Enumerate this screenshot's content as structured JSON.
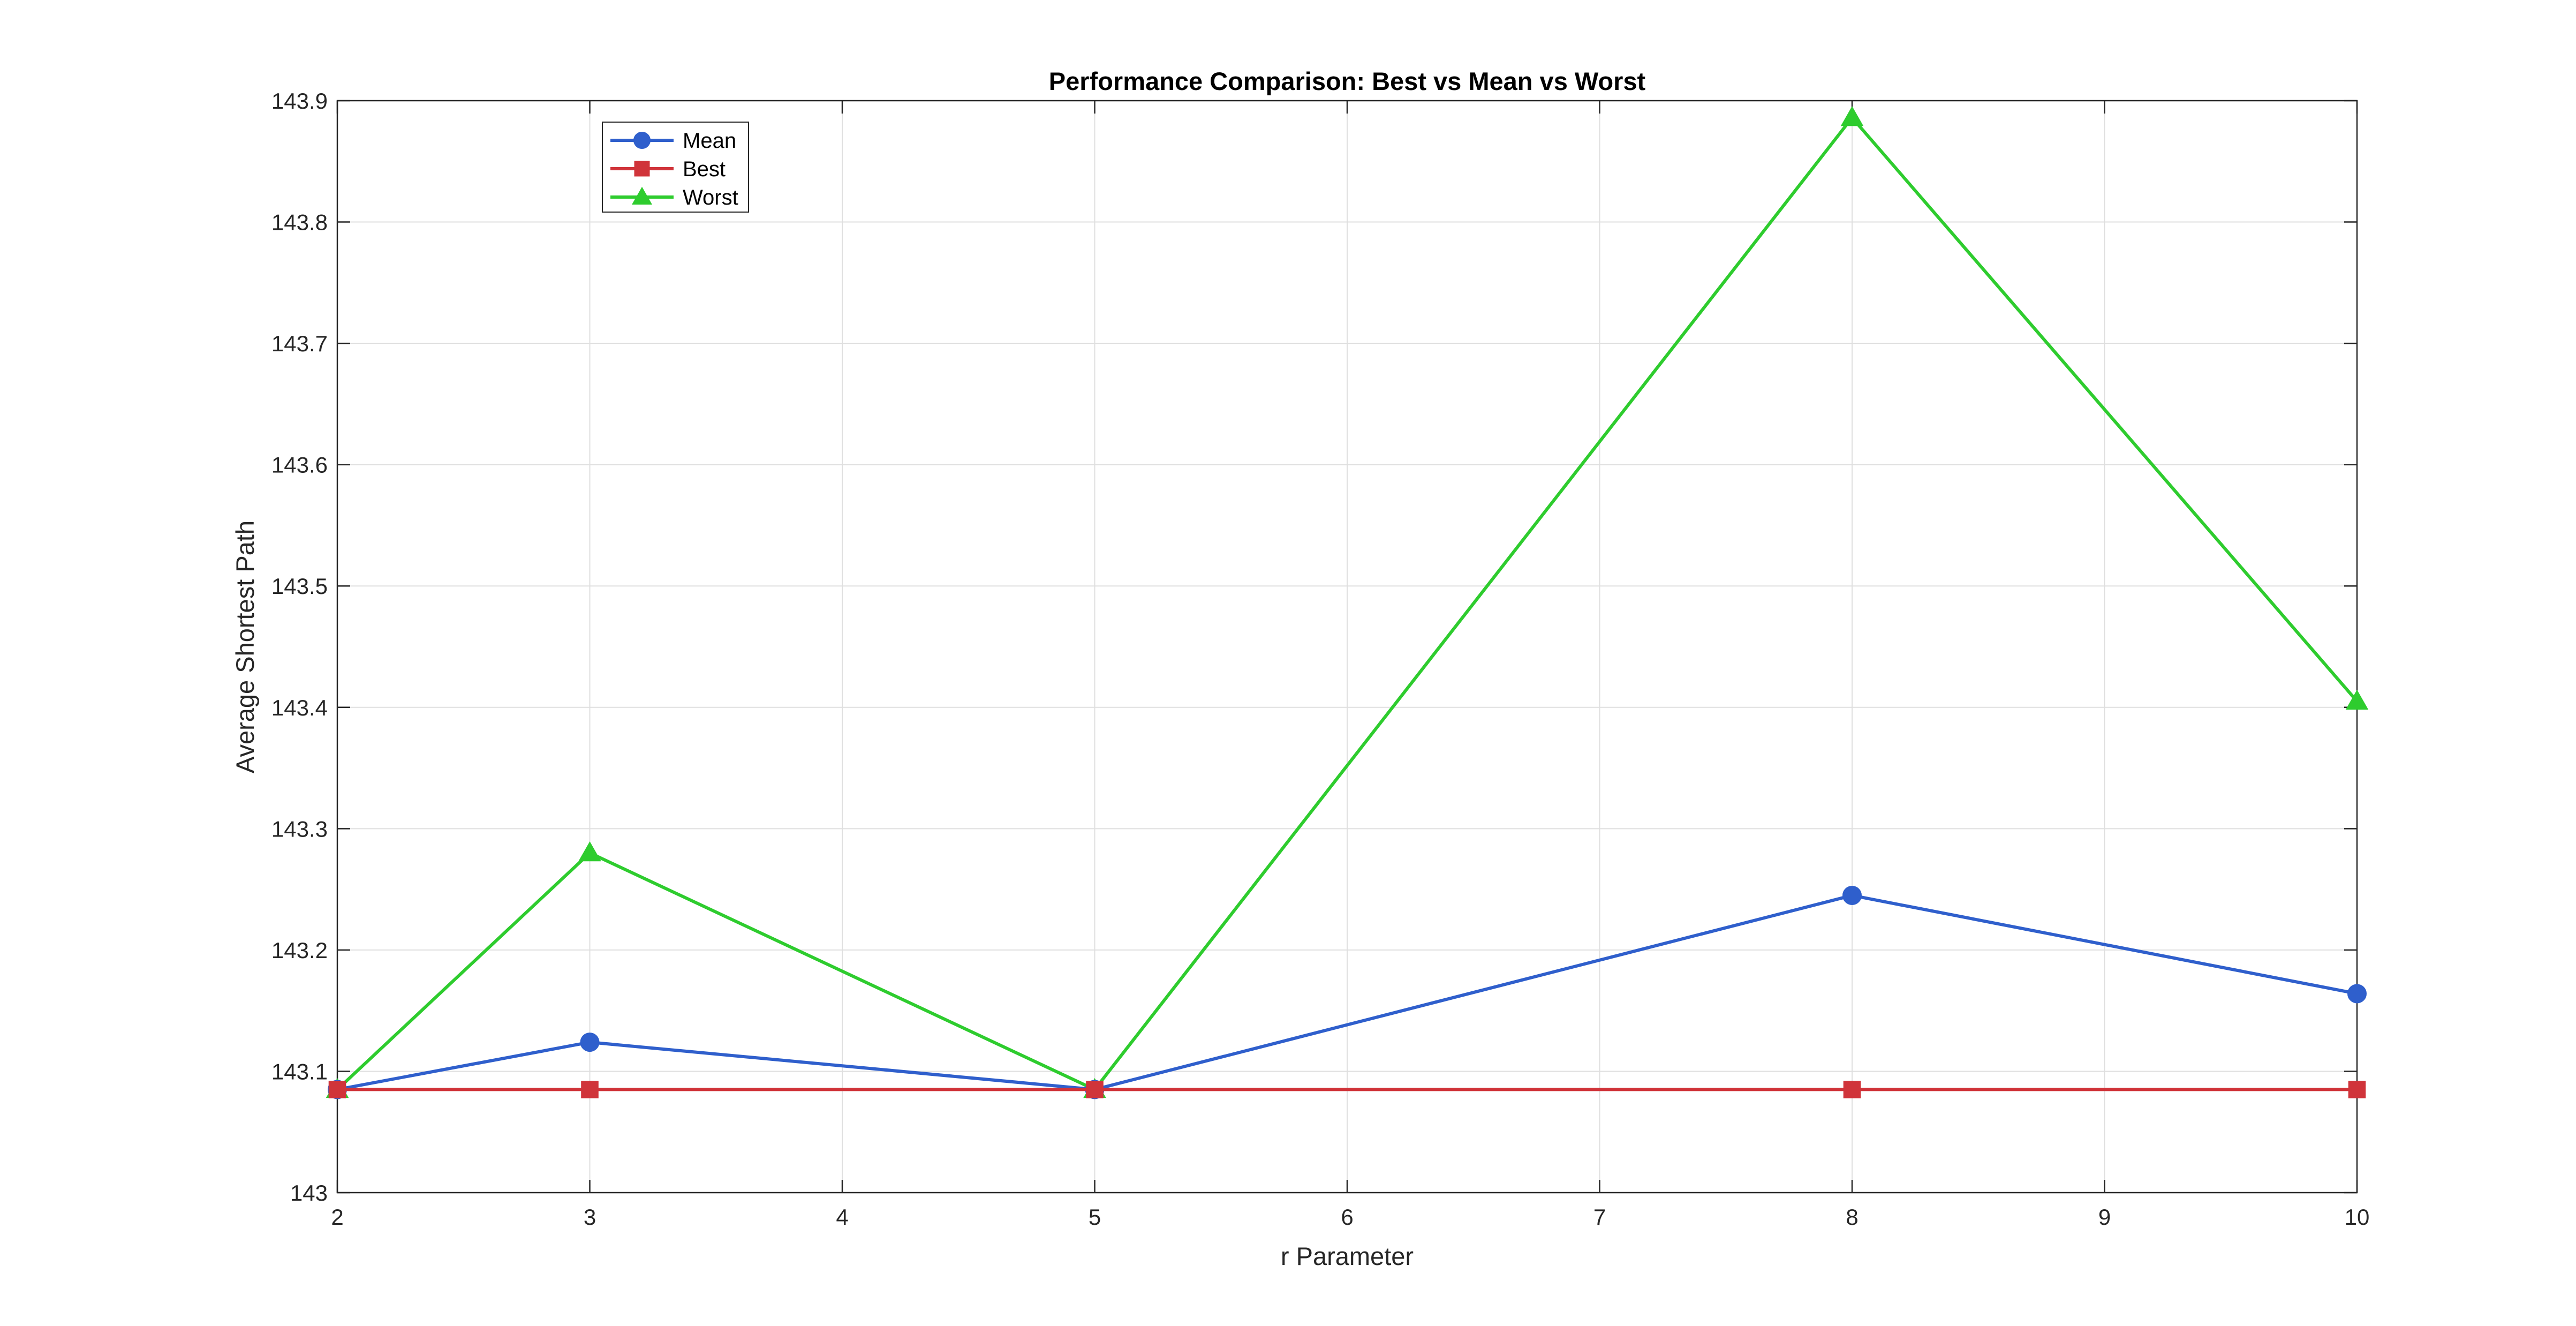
{
  "chart_data": {
    "type": "line",
    "title": "Performance Comparison: Best vs Mean vs Worst",
    "xlabel": "r Parameter",
    "ylabel": "Average Shortest Path",
    "xlim": [
      2,
      10
    ],
    "ylim": [
      143,
      143.9
    ],
    "x_ticks": [
      "2",
      "3",
      "4",
      "5",
      "6",
      "7",
      "8",
      "9",
      "10"
    ],
    "y_ticks": [
      "143",
      "143.1",
      "143.2",
      "143.3",
      "143.4",
      "143.5",
      "143.6",
      "143.7",
      "143.8",
      "143.9"
    ],
    "grid": true,
    "legend_position": "top-left",
    "x": [
      2,
      3,
      5,
      8,
      10
    ],
    "series": [
      {
        "name": "Mean",
        "color": "#2f5fcc",
        "marker": "circle",
        "values": [
          143.085,
          143.124,
          143.085,
          143.245,
          143.164
        ]
      },
      {
        "name": "Best",
        "color": "#d0343a",
        "marker": "square",
        "values": [
          143.085,
          143.085,
          143.085,
          143.085,
          143.085
        ]
      },
      {
        "name": "Worst",
        "color": "#2ecc2e",
        "marker": "triangle",
        "values": [
          143.085,
          143.28,
          143.085,
          143.886,
          143.405
        ]
      }
    ]
  }
}
